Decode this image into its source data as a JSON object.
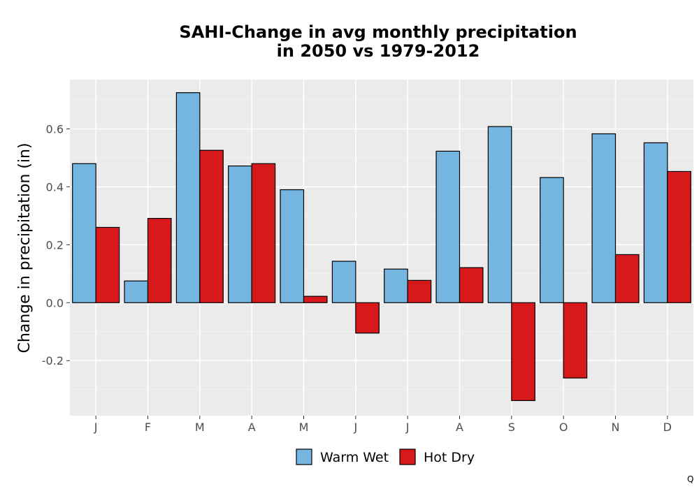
{
  "chart_data": {
    "type": "bar",
    "title_lines": [
      "SAHI-Change in avg monthly precipitation",
      "in 2050 vs 1979-2012"
    ],
    "xlabel": "",
    "ylabel": "Change in precipitation (in)",
    "categories": [
      "J",
      "F",
      "M",
      "A",
      "M",
      "J",
      "J",
      "A",
      "S",
      "O",
      "N",
      "D"
    ],
    "series": [
      {
        "name": "Warm Wet",
        "color": "#74b6e0",
        "values": [
          0.48,
          0.075,
          0.725,
          0.472,
          0.39,
          0.143,
          0.116,
          0.523,
          0.608,
          0.432,
          0.583,
          0.552
        ]
      },
      {
        "name": "Hot Dry",
        "color": "#d7191c",
        "values": [
          0.26,
          0.291,
          0.526,
          0.48,
          0.022,
          -0.105,
          0.077,
          0.121,
          -0.338,
          -0.26,
          0.166,
          0.453
        ]
      }
    ],
    "ylim": [
      -0.39,
      0.77
    ],
    "yticks": [
      -0.2,
      0.0,
      0.2,
      0.4,
      0.6
    ],
    "ytick_labels": [
      "-0.2",
      "0.0",
      "0.2",
      "0.4",
      "0.6"
    ],
    "grid": true,
    "legend_position": "bottom"
  },
  "corner_text": "Q"
}
